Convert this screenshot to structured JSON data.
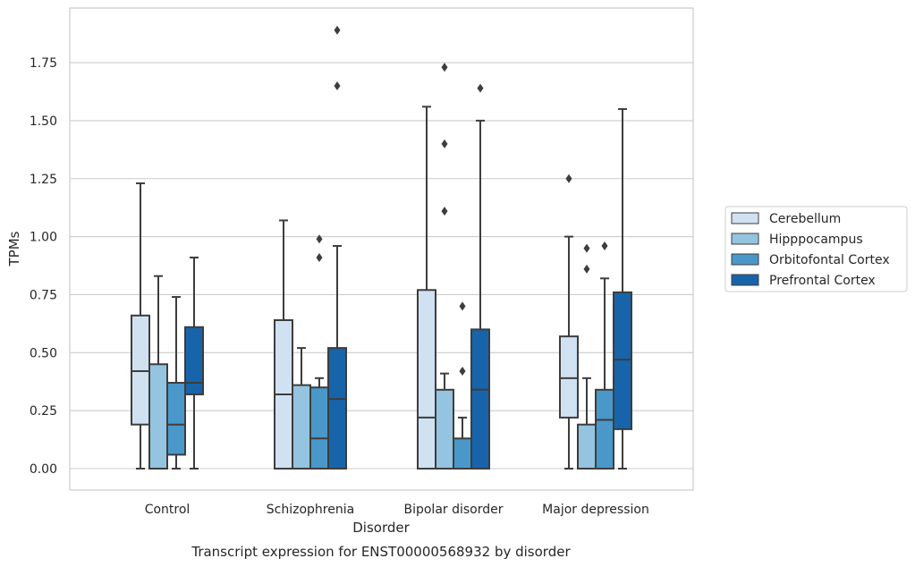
{
  "chart_data": {
    "type": "box",
    "title": "Transcript expression for ENST00000568932 by disorder",
    "xlabel": "Disorder",
    "ylabel": "TPMs",
    "ylim": [
      -0.09,
      1.99
    ],
    "yticks": [
      0.0,
      0.25,
      0.5,
      0.75,
      1.0,
      1.25,
      1.5,
      1.75
    ],
    "ytick_labels": [
      "0.00",
      "0.25",
      "0.50",
      "0.75",
      "1.00",
      "1.25",
      "1.50",
      "1.75"
    ],
    "grid": "horizontal",
    "legend_position": "right",
    "categories": [
      "Control",
      "Schizophrenia",
      "Bipolar disorder",
      "Major depression"
    ],
    "series": [
      {
        "name": "Cerebellum",
        "color": "#d0e1f2",
        "boxes": [
          {
            "whislo": 0.0,
            "q1": 0.19,
            "med": 0.42,
            "q3": 0.66,
            "whishi": 1.23,
            "fliers": []
          },
          {
            "whislo": 0.0,
            "q1": 0.0,
            "med": 0.32,
            "q3": 0.64,
            "whishi": 1.07,
            "fliers": []
          },
          {
            "whislo": 0.0,
            "q1": 0.0,
            "med": 0.22,
            "q3": 0.77,
            "whishi": 1.56,
            "fliers": []
          },
          {
            "whislo": 0.0,
            "q1": 0.22,
            "med": 0.39,
            "q3": 0.57,
            "whishi": 1.0,
            "fliers": [
              1.25
            ]
          }
        ]
      },
      {
        "name": "Hipppocampus",
        "color": "#94c4df",
        "boxes": [
          {
            "whislo": 0.0,
            "q1": 0.0,
            "med": 0.0,
            "q3": 0.45,
            "whishi": 0.83,
            "fliers": []
          },
          {
            "whislo": 0.0,
            "q1": 0.0,
            "med": 0.0,
            "q3": 0.36,
            "whishi": 0.52,
            "fliers": []
          },
          {
            "whislo": 0.0,
            "q1": 0.0,
            "med": 0.0,
            "q3": 0.34,
            "whishi": 0.41,
            "fliers": [
              1.11,
              1.4,
              1.73
            ]
          },
          {
            "whislo": 0.0,
            "q1": 0.0,
            "med": 0.0,
            "q3": 0.19,
            "whishi": 0.39,
            "fliers": [
              0.86,
              0.95
            ]
          }
        ]
      },
      {
        "name": "Orbitofontal Cortex",
        "color": "#4a98c9",
        "boxes": [
          {
            "whislo": 0.0,
            "q1": 0.06,
            "med": 0.19,
            "q3": 0.37,
            "whishi": 0.74,
            "fliers": []
          },
          {
            "whislo": 0.0,
            "q1": 0.0,
            "med": 0.13,
            "q3": 0.35,
            "whishi": 0.39,
            "fliers": [
              0.91,
              0.99
            ]
          },
          {
            "whislo": 0.0,
            "q1": 0.0,
            "med": 0.0,
            "q3": 0.13,
            "whishi": 0.22,
            "fliers": [
              0.42,
              0.7
            ]
          },
          {
            "whislo": 0.0,
            "q1": 0.0,
            "med": 0.21,
            "q3": 0.34,
            "whishi": 0.82,
            "fliers": [
              0.96
            ]
          }
        ]
      },
      {
        "name": "Prefrontal Cortex",
        "color": "#1764ab",
        "boxes": [
          {
            "whislo": 0.0,
            "q1": 0.32,
            "med": 0.37,
            "q3": 0.61,
            "whishi": 0.91,
            "fliers": []
          },
          {
            "whislo": 0.0,
            "q1": 0.0,
            "med": 0.3,
            "q3": 0.52,
            "whishi": 0.96,
            "fliers": [
              1.65,
              1.89
            ]
          },
          {
            "whislo": 0.0,
            "q1": 0.0,
            "med": 0.34,
            "q3": 0.6,
            "whishi": 1.5,
            "fliers": [
              1.64
            ]
          },
          {
            "whislo": 0.0,
            "q1": 0.17,
            "med": 0.47,
            "q3": 0.76,
            "whishi": 1.55,
            "fliers": []
          }
        ]
      }
    ]
  }
}
